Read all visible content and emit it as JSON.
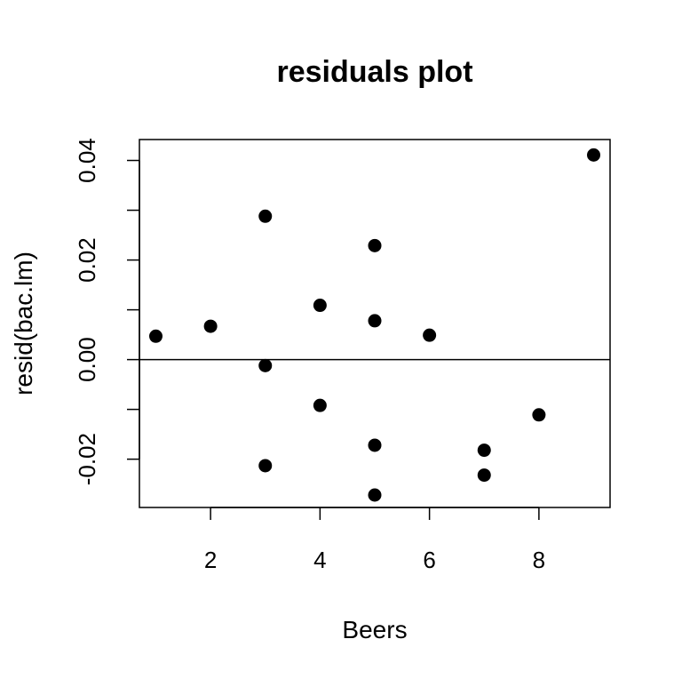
{
  "chart_data": {
    "type": "scatter",
    "title": "residuals plot",
    "xlabel": "Beers",
    "ylabel": "resid(bac.lm)",
    "x_ticks": [
      2,
      4,
      6,
      8
    ],
    "x_tick_labels": [
      "2",
      "4",
      "6",
      "8"
    ],
    "y_ticks": [
      -0.02,
      0.0,
      0.02,
      0.04
    ],
    "y_tick_labels": [
      "-0.02",
      "0.00",
      "0.02",
      "0.04"
    ],
    "y_minor_ticks": [
      -0.01,
      0.01,
      0.03
    ],
    "xlim": [
      0.7,
      9.3
    ],
    "ylim": [
      -0.0297,
      0.0442
    ],
    "reference_line": 0,
    "grid": false,
    "point_color": "#000000",
    "series": [
      {
        "x": [
          1,
          2,
          3,
          3,
          3,
          4,
          4,
          5,
          5,
          5,
          5,
          6,
          7,
          7,
          8,
          9
        ],
        "y": [
          0.0047,
          0.0067,
          0.0288,
          -0.0012,
          -0.0213,
          0.0109,
          -0.0092,
          0.0229,
          0.0078,
          -0.0172,
          -0.0272,
          0.0049,
          -0.0182,
          -0.0232,
          -0.0111,
          0.0411
        ]
      }
    ]
  }
}
